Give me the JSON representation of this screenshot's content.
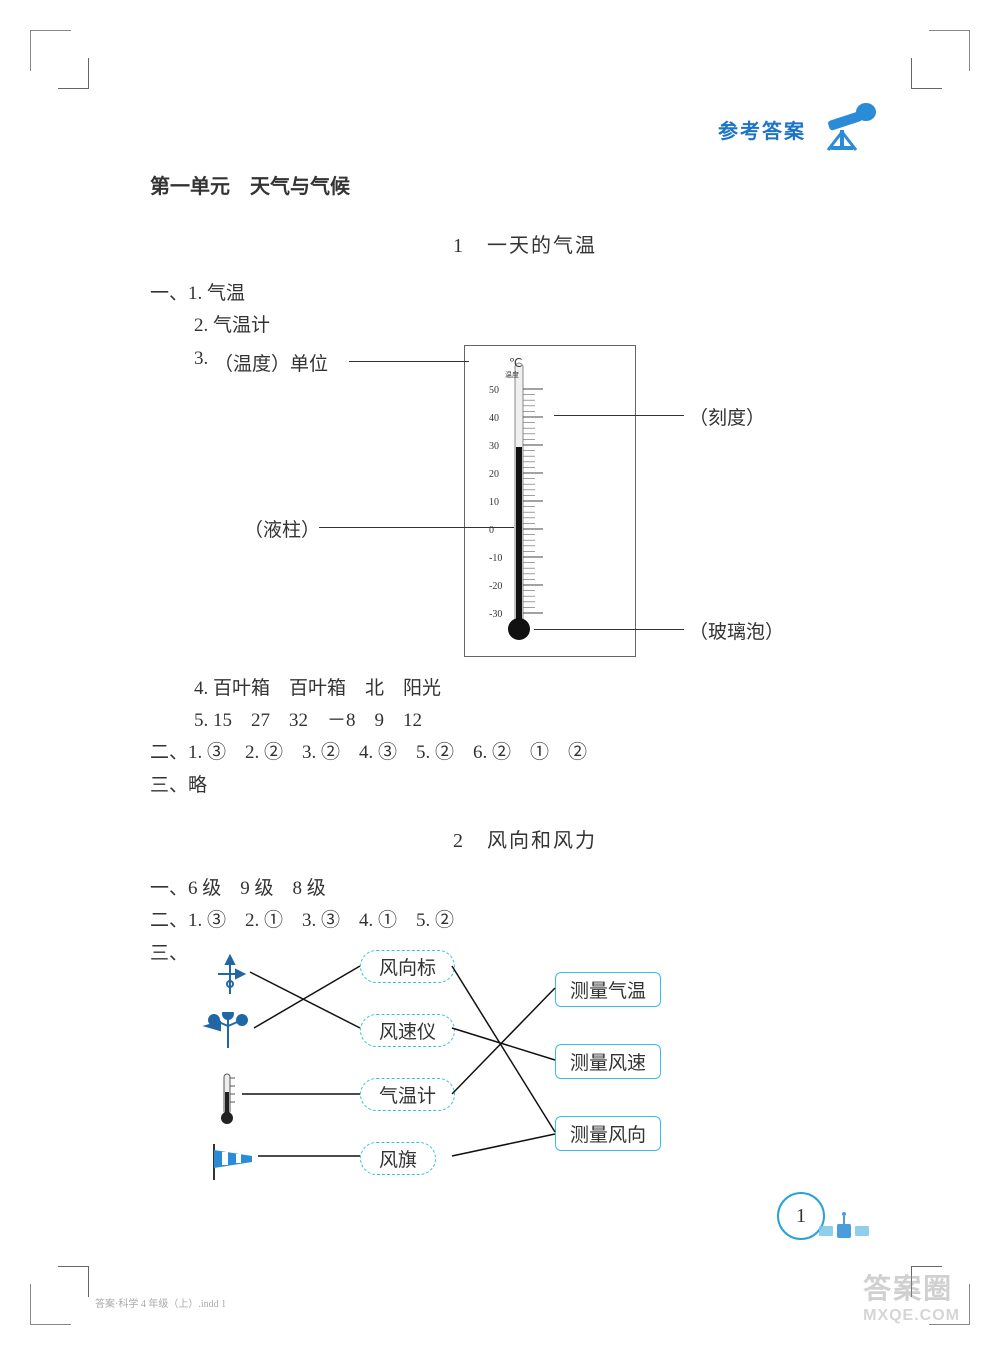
{
  "header": {
    "title": "参考答案"
  },
  "unit": {
    "title": "第一单元　天气与气候"
  },
  "lesson1": {
    "title": "1　一天的气温",
    "q1": {
      "prefix": "一、1.",
      "ans": "气温"
    },
    "q2": {
      "prefix": "2.",
      "ans": "气温计"
    },
    "q3_prefix": "3.",
    "thermo": {
      "label_unit": "（温度）单位",
      "label_scale": "（刻度）",
      "label_liquid": "（液柱）",
      "label_bulb": "（玻璃泡）",
      "celsius": "℃",
      "celsius_sub": "温度",
      "ticks": [
        50,
        40,
        30,
        20,
        10,
        0,
        -10,
        -20,
        -30
      ],
      "liquid_top_value": 30,
      "colors": {
        "border": "#666666",
        "tube": "#1a1a1a",
        "tick": "#444444"
      }
    },
    "q4": "4. 百叶箱　百叶箱　北　阳光",
    "q5": "5. 15　27　32　－8　9　12",
    "part2": "二、1. ③　2. ②　3. ②　4. ③　5. ②　6. ②　①　②",
    "part3": "三、略"
  },
  "lesson2": {
    "title": "2　风向和风力",
    "part1": "一、6 级　9 级　8 级",
    "part2": "二、1. ③　2. ①　3. ③　4. ①　5. ②",
    "part3_prefix": "三、",
    "mid_labels": [
      "风向标",
      "风速仪",
      "气温计",
      "风旗"
    ],
    "right_labels": [
      "测量气温",
      "测量风速",
      "测量风向"
    ],
    "left_icons": [
      "weathervane-icon",
      "anemometer-icon",
      "thermometer-icon",
      "windsock-icon"
    ],
    "edges_left_to_mid": [
      [
        0,
        1
      ],
      [
        1,
        0
      ],
      [
        2,
        2
      ],
      [
        3,
        3
      ]
    ],
    "edges_mid_to_right": [
      [
        0,
        2
      ],
      [
        1,
        1
      ],
      [
        2,
        0
      ],
      [
        3,
        2
      ]
    ],
    "colors": {
      "box_border": "#37bfe0",
      "line": "#111111"
    }
  },
  "page_number": "1",
  "watermark": {
    "top": "答案圈",
    "bottom": "MXQE.COM"
  },
  "footer_note": "答案·科学 4 年级（上）.indd  1"
}
